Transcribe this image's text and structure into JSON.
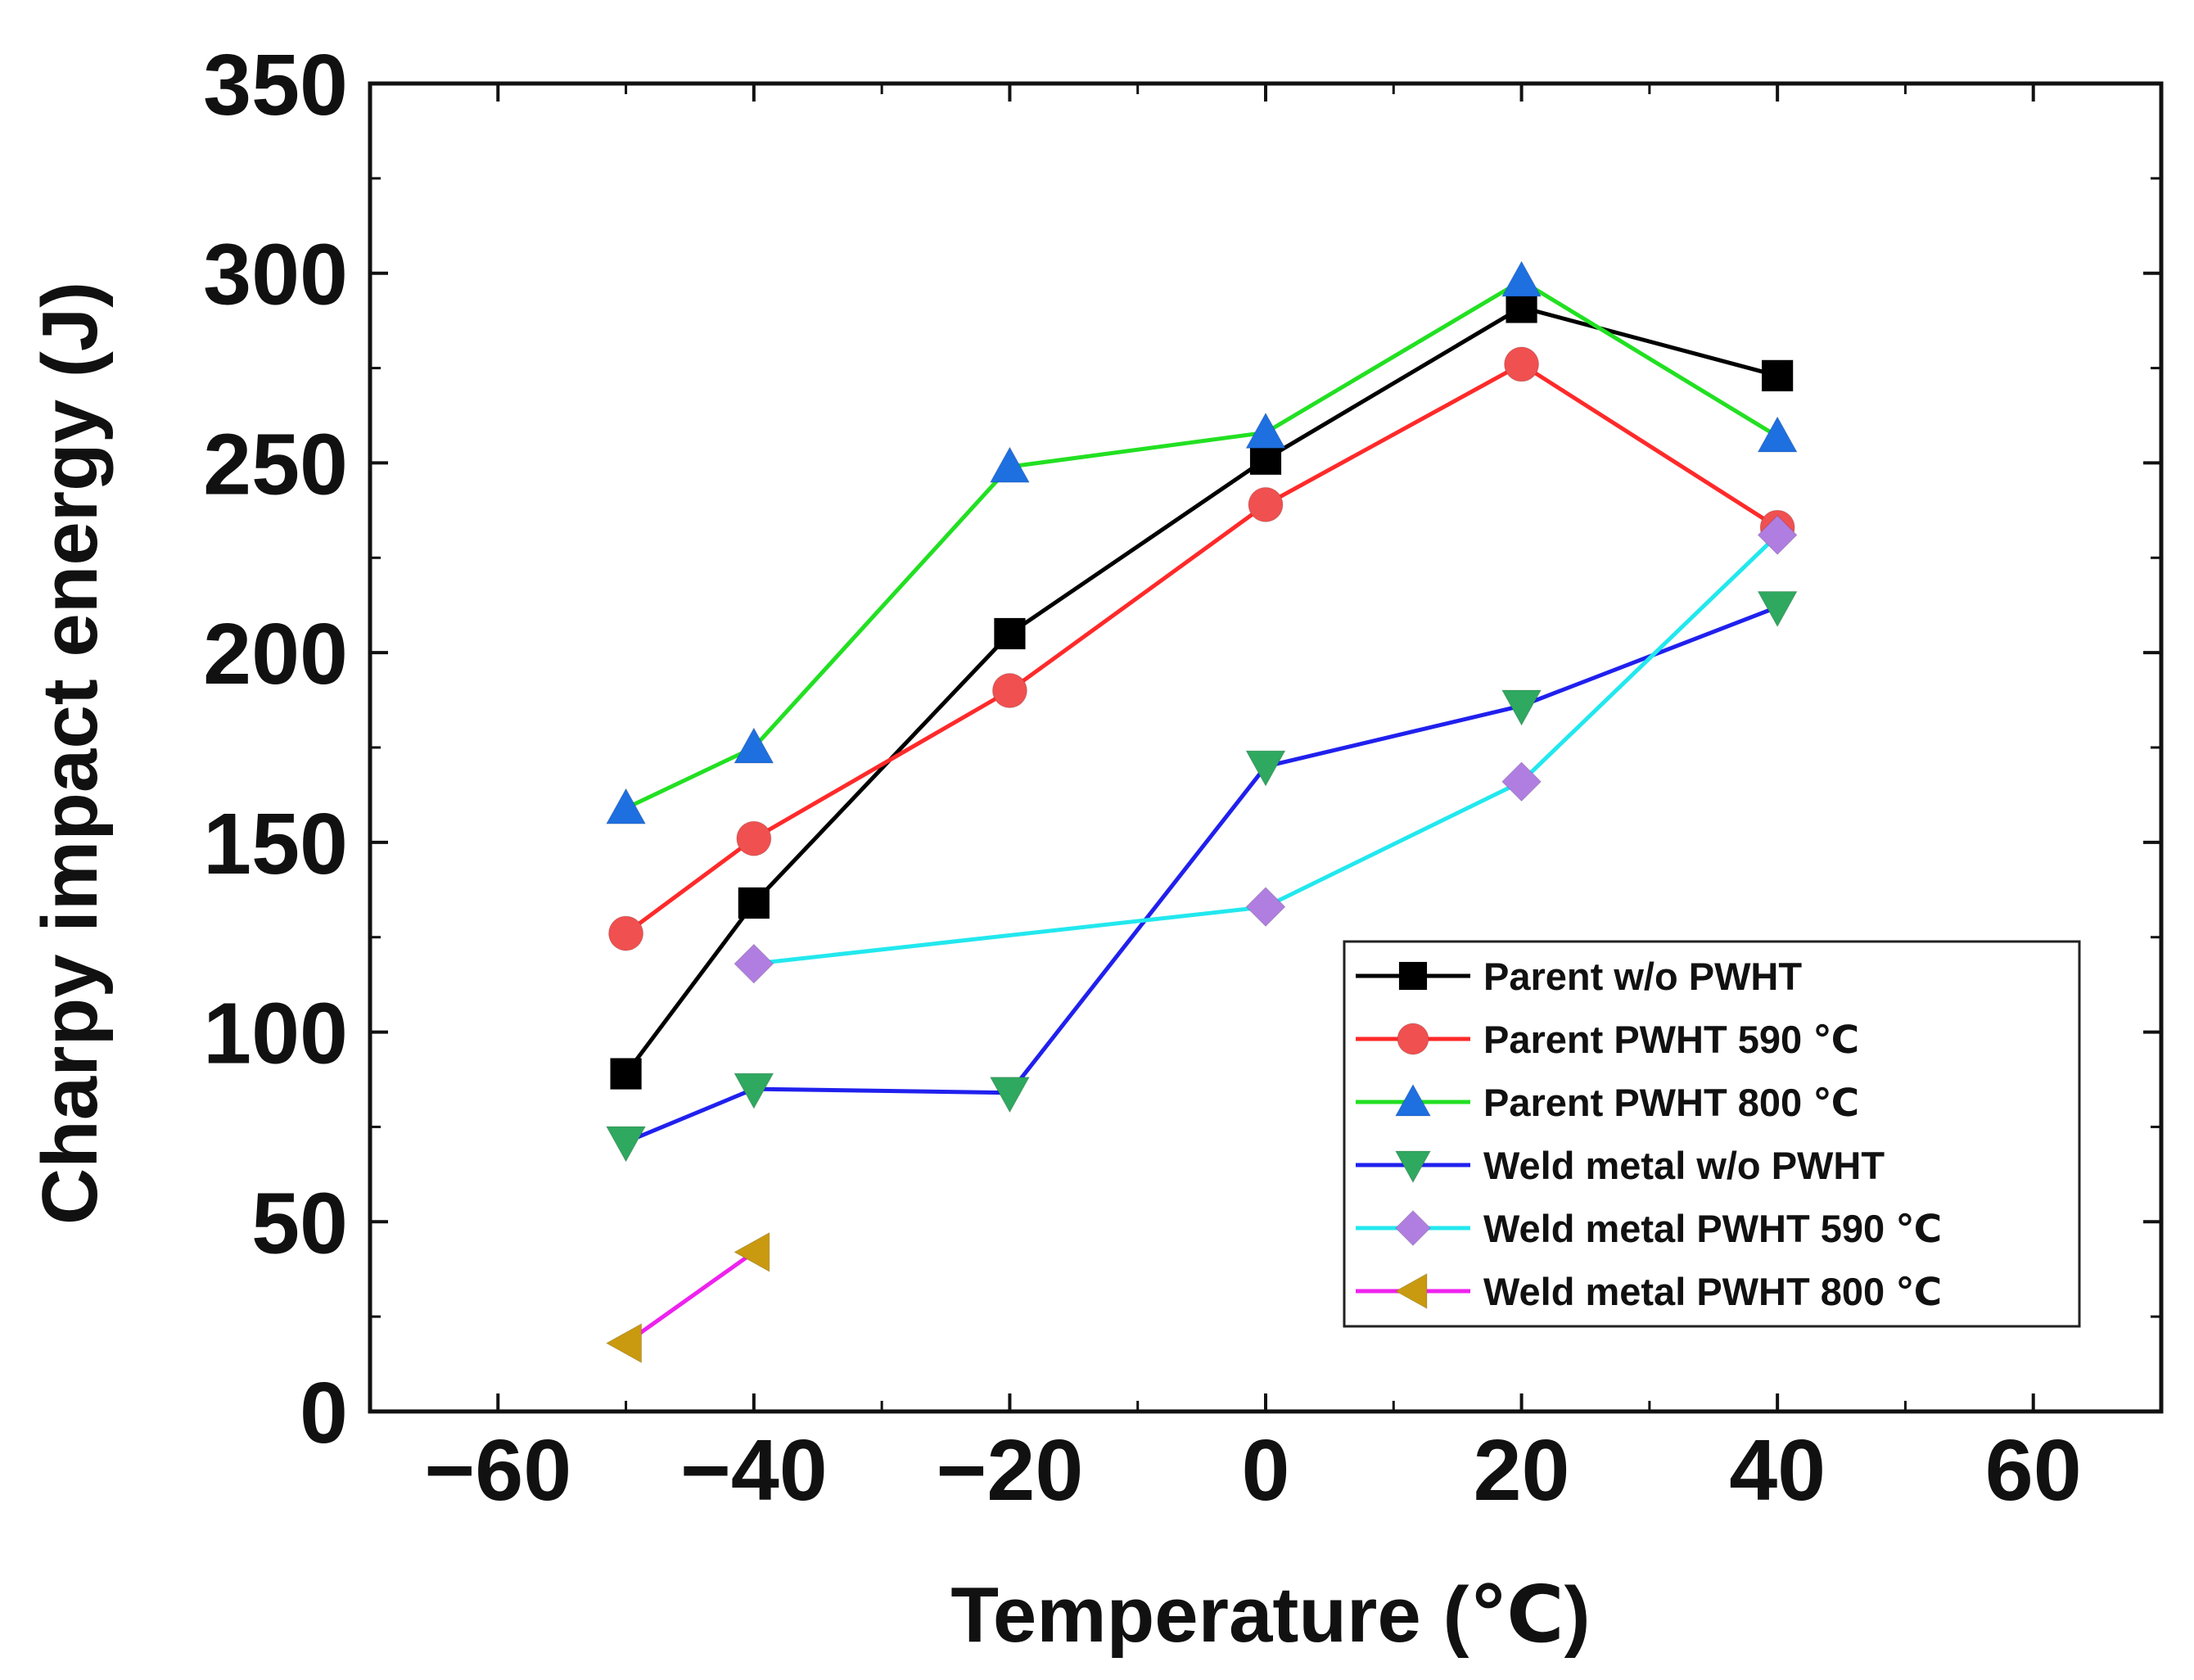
{
  "chart_data": {
    "type": "line",
    "xlabel": "Temperature (℃)",
    "ylabel": "Charpy impact energy (J)",
    "xlim": [
      -70,
      70
    ],
    "ylim": [
      0,
      350
    ],
    "x_ticks": [
      -60,
      -40,
      -20,
      0,
      20,
      40,
      60
    ],
    "x_tick_labels": [
      "−60",
      "−40",
      "−20",
      "0",
      "20",
      "40",
      "60"
    ],
    "y_ticks": [
      0,
      50,
      100,
      150,
      200,
      250,
      300,
      350
    ],
    "y_tick_labels": [
      "0",
      "50",
      "100",
      "150",
      "200",
      "250",
      "300",
      "350"
    ],
    "grid": false,
    "legend_position": "bottom-right",
    "series": [
      {
        "name": "Parent w/o PWHT",
        "color": "#000000",
        "marker": "square",
        "x": [
          -50,
          -40,
          -20,
          0,
          20,
          40
        ],
        "y": [
          89,
          134,
          205,
          251,
          291,
          273
        ]
      },
      {
        "name": "Parent PWHT 590 ℃",
        "color": "#ff2a2a",
        "marker_color": "#f05050",
        "marker": "circle",
        "x": [
          -50,
          -40,
          -20,
          0,
          20,
          40
        ],
        "y": [
          126,
          151,
          190,
          239,
          276,
          233
        ]
      },
      {
        "name": "Parent PWHT 800 ℃",
        "color": "#22e022",
        "marker_color": "#1e6fe0",
        "marker": "triangle-up",
        "x": [
          -50,
          -40,
          -20,
          0,
          20,
          40
        ],
        "y": [
          159,
          175,
          249,
          258,
          298,
          257
        ]
      },
      {
        "name": "Weld metal w/o PWHT",
        "color": "#2020ee",
        "marker_color": "#2fa860",
        "marker": "triangle-down",
        "x": [
          -50,
          -40,
          -20,
          0,
          20,
          40
        ],
        "y": [
          71,
          85,
          84,
          170,
          186,
          212
        ]
      },
      {
        "name": "Weld metal PWHT 590 ℃",
        "color": "#22e8ee",
        "marker_color": "#b07ee0",
        "marker": "diamond",
        "x": [
          -40,
          0,
          20,
          40
        ],
        "y": [
          118,
          133,
          166,
          231
        ]
      },
      {
        "name": "Weld metal PWHT 800 ℃",
        "color": "#ee22ee",
        "marker_color": "#c99a10",
        "marker": "triangle-left",
        "x": [
          -50,
          -40
        ],
        "y": [
          18,
          42
        ]
      }
    ]
  }
}
